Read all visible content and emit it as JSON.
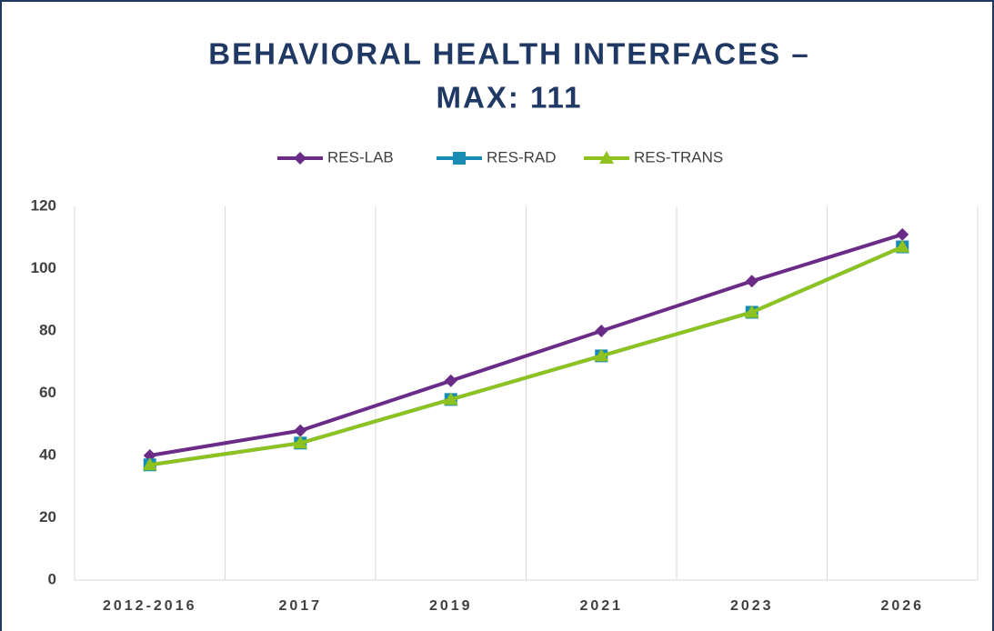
{
  "chart_data": {
    "type": "line",
    "title": [
      "BEHAVIORAL HEALTH INTERFACES –",
      "MAX: 111"
    ],
    "categories": [
      "2012-2016",
      "2017",
      "2019",
      "2021",
      "2023",
      "2026"
    ],
    "series": [
      {
        "name": "RES-LAB",
        "color": "#6a2c86",
        "marker": "diamond",
        "values": [
          40,
          48,
          64,
          80,
          96,
          111
        ]
      },
      {
        "name": "RES-RAD",
        "color": "#1a8bb5",
        "marker": "square",
        "values": [
          37,
          44,
          58,
          72,
          86,
          107
        ]
      },
      {
        "name": "RES-TRANS",
        "color": "#8dc21f",
        "marker": "triangle",
        "values": [
          37,
          44,
          58,
          72,
          86,
          107
        ]
      }
    ],
    "ylim": [
      0,
      120
    ],
    "yticks": [
      0,
      20,
      40,
      60,
      80,
      100,
      120
    ],
    "grid": "vertical",
    "legend": "top"
  }
}
